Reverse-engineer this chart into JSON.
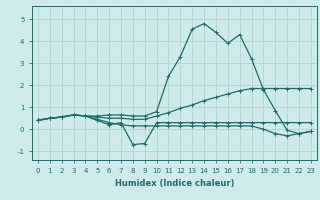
{
  "xlabel": "Humidex (Indice chaleur)",
  "background_color": "#ceeaea",
  "line_color": "#1e6b6b",
  "grid_color": "#aacece",
  "xlim": [
    -0.5,
    23.5
  ],
  "ylim": [
    -1.4,
    5.6
  ],
  "yticks": [
    -1,
    0,
    1,
    2,
    3,
    4,
    5
  ],
  "xticks": [
    0,
    1,
    2,
    3,
    4,
    5,
    6,
    7,
    8,
    9,
    10,
    11,
    12,
    13,
    14,
    15,
    16,
    17,
    18,
    19,
    20,
    21,
    22,
    23
  ],
  "series": [
    [
      0.4,
      0.5,
      0.55,
      0.65,
      0.6,
      0.6,
      0.65,
      0.65,
      0.6,
      0.6,
      0.8,
      2.4,
      3.3,
      4.55,
      4.8,
      4.4,
      3.9,
      4.3,
      3.2,
      1.8,
      0.85,
      -0.05,
      -0.2,
      -0.1
    ],
    [
      0.4,
      0.5,
      0.55,
      0.65,
      0.6,
      0.4,
      0.2,
      0.3,
      -0.7,
      -0.65,
      0.3,
      0.3,
      0.3,
      0.3,
      0.3,
      0.3,
      0.3,
      0.3,
      0.3,
      0.3,
      0.3,
      0.3,
      0.3,
      0.3
    ],
    [
      0.4,
      0.5,
      0.55,
      0.65,
      0.6,
      0.55,
      0.5,
      0.5,
      0.45,
      0.45,
      0.6,
      0.75,
      0.95,
      1.1,
      1.3,
      1.45,
      1.6,
      1.75,
      1.85,
      1.85,
      1.85,
      1.85,
      1.85,
      1.85
    ],
    [
      0.4,
      0.5,
      0.55,
      0.65,
      0.6,
      0.45,
      0.3,
      0.2,
      0.15,
      0.15,
      0.15,
      0.15,
      0.15,
      0.15,
      0.15,
      0.15,
      0.15,
      0.15,
      0.15,
      0.0,
      -0.2,
      -0.3,
      -0.2,
      -0.1
    ]
  ],
  "marker": "+",
  "markersize": 3,
  "linewidth": 0.9
}
